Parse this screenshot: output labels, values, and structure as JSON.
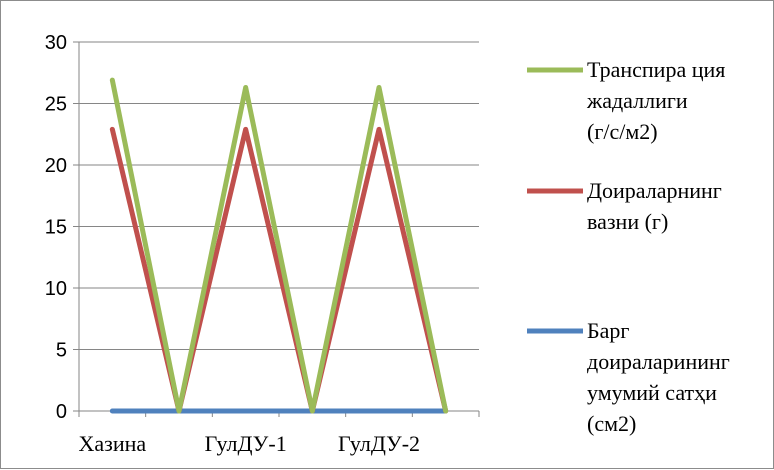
{
  "chart_data": {
    "type": "line",
    "title": "",
    "xlabel": "",
    "ylabel": "",
    "ylim": [
      0,
      30
    ],
    "yticks": [
      0,
      5,
      10,
      15,
      20,
      25,
      30
    ],
    "ytick_labels": [
      "0",
      "5",
      "10",
      "15",
      "20",
      "25",
      "30"
    ],
    "categories": [
      "Хазина",
      "",
      "ГулДУ-1",
      "",
      "ГулДУ-2",
      ""
    ],
    "grid": "horizontal",
    "legend_position": "right",
    "series": [
      {
        "name": "Транспира ция жадаллиги (г/с/м2)",
        "legend_lines": [
          "Транспира ция",
          "жадаллиги",
          "(г/с/м2)"
        ],
        "color": "#9bbb59",
        "values": [
          26.9,
          0,
          26.3,
          0,
          26.3,
          0
        ]
      },
      {
        "name": "Доираларнинг вазни (г)",
        "legend_lines": [
          "Доираларнинг",
          "вазни (г)"
        ],
        "color": "#c0504d",
        "values": [
          22.9,
          0,
          22.9,
          0,
          22.9,
          0
        ]
      },
      {
        "name": "Барг доираларининг умумий сатҳи (см2)",
        "legend_lines": [
          "Барг",
          "доираларининг",
          "умумий сатҳи",
          "(см2)"
        ],
        "color": "#4f81bd",
        "values": [
          0,
          0,
          0,
          0,
          0,
          0
        ]
      }
    ]
  }
}
